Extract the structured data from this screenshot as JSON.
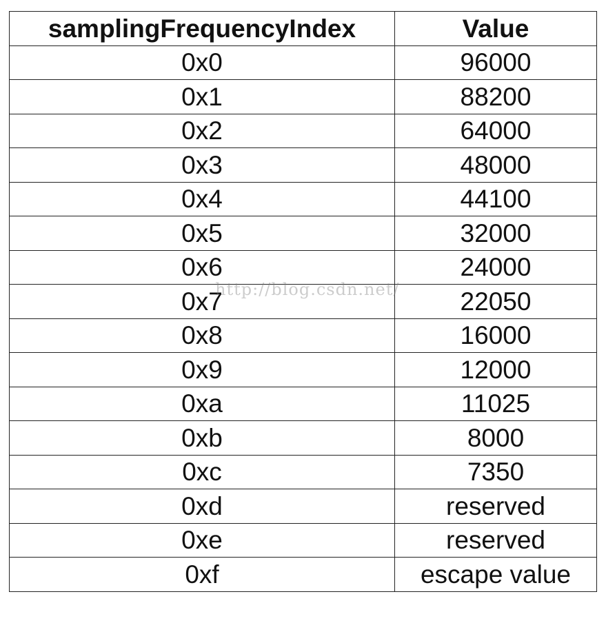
{
  "table": {
    "headers": [
      "samplingFrequencyIndex",
      "Value"
    ],
    "rows": [
      [
        "0x0",
        "96000"
      ],
      [
        "0x1",
        "88200"
      ],
      [
        "0x2",
        "64000"
      ],
      [
        "0x3",
        "48000"
      ],
      [
        "0x4",
        "44100"
      ],
      [
        "0x5",
        "32000"
      ],
      [
        "0x6",
        "24000"
      ],
      [
        "0x7",
        "22050"
      ],
      [
        "0x8",
        "16000"
      ],
      [
        "0x9",
        "12000"
      ],
      [
        "0xa",
        "11025"
      ],
      [
        "0xb",
        "8000"
      ],
      [
        "0xc",
        "7350"
      ],
      [
        "0xd",
        "reserved"
      ],
      [
        "0xe",
        "reserved"
      ],
      [
        "0xf",
        "escape value"
      ]
    ]
  },
  "watermark": "http://blog.csdn.net/"
}
